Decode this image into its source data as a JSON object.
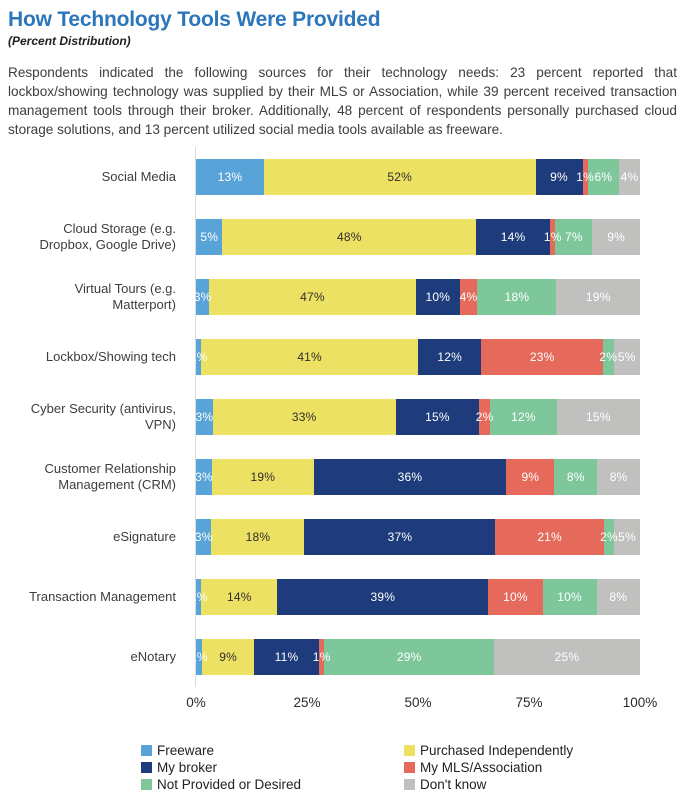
{
  "header": {
    "title": "How Technology Tools Were Provided",
    "subtitle": "(Percent Distribution)"
  },
  "description": "Respondents indicated the following sources for their technology needs: 23 percent reported that lockbox/showing technology was supplied by their MLS or Association, while 39 percent received transaction management tools through their broker. Additionally, 48 percent of respondents personally purchased cloud storage solutions, and 13 percent utilized social media tools available as freeware.",
  "chart_data": {
    "type": "bar",
    "orientation": "horizontal",
    "stacked": true,
    "normalized_to_row_total": true,
    "title": "How Technology Tools Were Provided",
    "subtitle": "(Percent Distribution)",
    "categories": [
      "Social Media",
      "Cloud Storage (e.g. Dropbox, Google Drive)",
      "Virtual Tours (e.g. Matterport)",
      "Lockbox/Showing tech",
      "Cyber Security (antivirus, VPN)",
      "Customer Relationship Management (CRM)",
      "eSignature",
      "Transaction Management",
      "eNotary"
    ],
    "series": [
      {
        "name": "Freeware",
        "color": "#58A4D8",
        "text_color": "#FFFFFF",
        "values": [
          13,
          5,
          3,
          1,
          3,
          3,
          3,
          1,
          1
        ]
      },
      {
        "name": "Purchased Independently",
        "color": "#EDE163",
        "text_color": "#2E2E2E",
        "values": [
          52,
          48,
          47,
          41,
          33,
          19,
          18,
          14,
          9
        ]
      },
      {
        "name": "My broker",
        "color": "#1E3C7B",
        "text_color": "#FFFFFF",
        "values": [
          9,
          14,
          10,
          12,
          15,
          36,
          37,
          39,
          11
        ]
      },
      {
        "name": "My MLS/Association",
        "color": "#E56A5B",
        "text_color": "#FFFFFF",
        "values": [
          1,
          1,
          4,
          23,
          2,
          9,
          21,
          10,
          1
        ]
      },
      {
        "name": "Not Provided or Desired",
        "color": "#7EC79B",
        "text_color": "#FFFFFF",
        "values": [
          6,
          7,
          18,
          2,
          12,
          8,
          2,
          10,
          29
        ]
      },
      {
        "name": "Don't know",
        "color": "#C0C0BF",
        "text_color": "#FFFFFF",
        "values": [
          4,
          9,
          19,
          5,
          15,
          8,
          5,
          8,
          25
        ]
      }
    ],
    "value_suffix": "%",
    "x_ticks": [
      "0%",
      "25%",
      "50%",
      "75%",
      "100%"
    ],
    "xlim": [
      0,
      100
    ],
    "gridlines": "none-except-zero-axis",
    "legend_position": "bottom"
  },
  "colors": {
    "title": "#2C76BB",
    "body_text": "#3D3D3D",
    "axis_text": "#2B2B2B",
    "axis_line": "#DBDBDB",
    "background": "#FFFFFF"
  }
}
